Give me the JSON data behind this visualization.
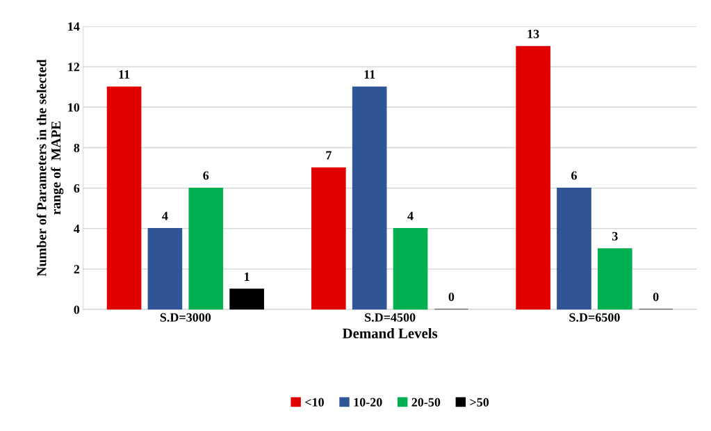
{
  "chart_data": {
    "type": "bar",
    "xlabel": "Demand Levels",
    "ylabel": "Number of Parameters in the selected\nrange of  MAPE",
    "categories": [
      "S.D=3000",
      "S.D=4500",
      "S.D=6500"
    ],
    "series": [
      {
        "name": "<10",
        "color": "#e00000",
        "values": [
          11,
          7,
          13
        ]
      },
      {
        "name": "10-20",
        "color": "#2f5597",
        "values": [
          4,
          11,
          6
        ]
      },
      {
        "name": "20-50",
        "color": "#00b050",
        "values": [
          6,
          4,
          3
        ]
      },
      {
        "name": ">50",
        "color": "#000000",
        "values": [
          1,
          0,
          0
        ]
      }
    ],
    "ylim": [
      0,
      14
    ],
    "yticks": [
      0,
      2,
      4,
      6,
      8,
      10,
      12,
      14
    ],
    "grid": "y",
    "legend": "bottom",
    "data_labels": true
  }
}
